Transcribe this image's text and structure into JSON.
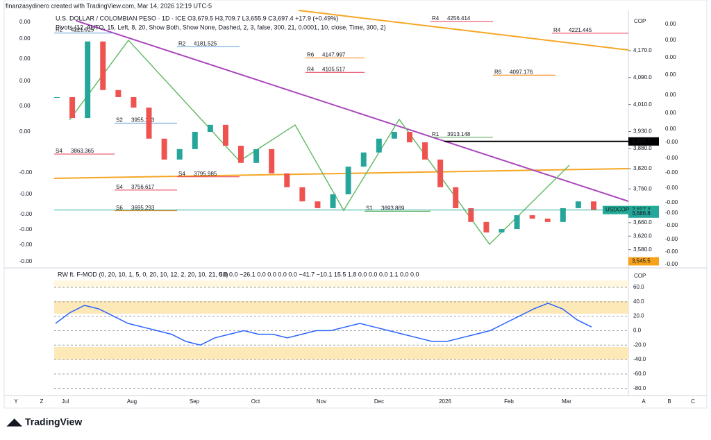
{
  "header": {
    "credit": "finanzasydinero created with TradingView.com, Mar 14, 2026 12:19 UTC-5",
    "symbol_line": "U.S. DOLLAR / COLOMBIAN PESO · 1D · ICE  O3,679.5  H3,709.7  L3,655.9  C3,697.4  +17.9 (+0.49%)",
    "pivots_line": "Pivots (12, AUTO, 15, Left, 8, 20, Show Both, Show None, Dashed, 2, 3, false, 300, 21, 0.0001, 10, close, Time, 300, 2)"
  },
  "price_chart": {
    "currency": "COP",
    "ylim": [
      3528,
      4289
    ],
    "yticks": [
      {
        "value": 4170,
        "label": "4,170.0"
      },
      {
        "value": 4090,
        "label": "4,090.0"
      },
      {
        "value": 4010,
        "label": "4,010.0"
      },
      {
        "value": 3930,
        "label": "3,930.0"
      },
      {
        "value": 3880,
        "label": "3,880.0"
      },
      {
        "value": 3820,
        "label": "3,820.0"
      },
      {
        "value": 3760,
        "label": "3,760.0"
      },
      {
        "value": 3660,
        "label": "3,660.0"
      },
      {
        "value": 3620,
        "label": "3,620.0"
      },
      {
        "value": 3580,
        "label": "3,580.0"
      }
    ],
    "closes": [
      4032,
      3970,
      4197,
      4053,
      4032,
      4001,
      3909,
      3847,
      3878,
      3929,
      3950,
      3888,
      3837,
      3878,
      3806,
      3765,
      3723,
      3703,
      3744,
      3826,
      3868,
      3909,
      3929,
      3898,
      3847,
      3765,
      3703,
      3662,
      3631,
      3641,
      3682,
      3672,
      3662,
      3703,
      3723,
      3697.4
    ],
    "symbol_tag": "USDCOP",
    "price_labels": [
      {
        "value": 3900.7,
        "label": "3,900.7"
      },
      {
        "value": 3697.4,
        "label": "3,697.4"
      },
      {
        "value": 3686.8,
        "label": "3,686.8"
      },
      {
        "value": 3545.5,
        "label": "3,545.5"
      }
    ],
    "pivots": [
      {
        "name": "R2",
        "value": 4221.925
      },
      {
        "name": "S4",
        "value": 3863.365
      },
      {
        "name": "S2",
        "value": 3955.143
      },
      {
        "name": "S4",
        "value": 3756.617
      },
      {
        "name": "S6",
        "value": 3695.293
      },
      {
        "name": "R2",
        "value": 4181.525
      },
      {
        "name": "S4",
        "value": 3795.985
      },
      {
        "name": "R6",
        "value": 4147.997
      },
      {
        "name": "R4",
        "value": 4105.517
      },
      {
        "name": "S1",
        "value": 3693.869
      },
      {
        "name": "R4",
        "value": 4256.414
      },
      {
        "name": "R1",
        "value": 3913.148
      },
      {
        "name": "R6",
        "value": 4097.176
      },
      {
        "name": "R4",
        "value": 4221.445
      }
    ],
    "left_scale": [
      "0.00",
      "0.00",
      "0.00",
      "0.00",
      "0.00",
      "0.00",
      "-0.00",
      "-0.00",
      "-0.00",
      "-0.00",
      "-0.00",
      "-0.00"
    ],
    "right_scale": [
      "0.00",
      "0.00",
      "0.00",
      "0.00",
      "0.00",
      "0.00",
      "0.00",
      "-0.00",
      "-0.00",
      "-0.00",
      "-0.00",
      "-0.00",
      "-0.00",
      "-0.00",
      "-0.00",
      "-0.00",
      "-0.00"
    ]
  },
  "indicator": {
    "title": "RW ft. F-MOD (0, 20, 10, 1, 5, 0, 20, 10, 12, 2, 20, 10, 21, 50)",
    "readout": "0.0  0.0  −26.1  0.0  0.0  0.0  0.0  −41.7  −10.1  15.5  1.8  0.0  0.0  0.0  1.1  0.0  0.0",
    "currency": "COP",
    "ylim": [
      -88,
      85
    ],
    "yticks": [
      {
        "value": 60,
        "label": "60.0"
      },
      {
        "value": 40,
        "label": "40.0"
      },
      {
        "value": 20,
        "label": "20.0"
      },
      {
        "value": 0,
        "label": "0.0"
      },
      {
        "value": -20,
        "label": "-20.0"
      },
      {
        "value": -40,
        "label": "-40.0"
      },
      {
        "value": -60,
        "label": "-60.0"
      },
      {
        "value": -80,
        "label": "-80.0"
      }
    ],
    "values": [
      10,
      25,
      35,
      30,
      20,
      10,
      5,
      0,
      -5,
      -15,
      -20,
      -10,
      -5,
      0,
      -5,
      -5,
      -10,
      -5,
      0,
      0,
      5,
      10,
      5,
      0,
      -5,
      -10,
      -15,
      -15,
      -10,
      -5,
      0,
      10,
      20,
      30,
      38,
      30,
      15,
      5
    ]
  },
  "time_axis": [
    "Y",
    "Z",
    "Jul",
    "Aug",
    "Sep",
    "Oct",
    "Nov",
    "Dec",
    "2026",
    "Feb",
    "Mar",
    "A",
    "B",
    "C"
  ],
  "footer": "TradingView"
}
